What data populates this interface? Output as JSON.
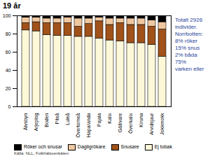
{
  "chart_data": {
    "type": "bar",
    "title": "19 år",
    "stacked": true,
    "categories": [
      "Älvsbyn",
      "Arjeplog",
      "Boden",
      "Piteå",
      "Luleå",
      "Övertorneå",
      "Haparanda",
      "Pajala",
      "Kalix",
      "Gällivare",
      "Överkalix",
      "Kiruna",
      "Arvidsjaur",
      "Jokkmokk"
    ],
    "series": [
      {
        "name": "Ej tobak",
        "color": "#fdf8d8",
        "values": [
          84,
          83,
          79,
          78,
          78,
          77,
          77,
          75,
          73,
          72,
          70,
          70,
          68,
          55
        ]
      },
      {
        "name": "Snusare",
        "color": "#a0521a",
        "values": [
          8,
          10,
          13,
          14,
          14,
          11,
          14,
          19,
          17,
          20,
          20,
          20,
          20,
          30
        ]
      },
      {
        "name": "Dagligrökare",
        "color": "#f0c8a0",
        "values": [
          6,
          5,
          5,
          5,
          6,
          9,
          6,
          4,
          7,
          5,
          7,
          7,
          7,
          8
        ]
      },
      {
        "name": "Röker och snusar",
        "color": "#000000",
        "values": [
          2,
          2,
          3,
          3,
          2,
          3,
          3,
          2,
          3,
          3,
          3,
          3,
          5,
          7
        ]
      }
    ],
    "ylim": [
      0,
      100
    ],
    "yticks": [
      0,
      20,
      40,
      60,
      80,
      100
    ],
    "grid": false,
    "legend": "bottom",
    "annotations": [
      "Totalt 2926",
      "individer.",
      "Norrbotten:",
      "8% röker",
      "15% snus",
      "2% båda",
      "75%",
      "varken eller"
    ],
    "source": "Källa: NLL, Folkhälsoenkäten"
  }
}
